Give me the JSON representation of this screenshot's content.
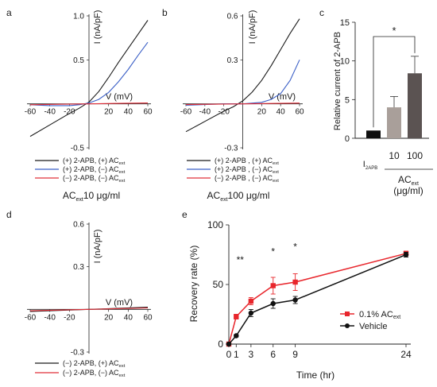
{
  "panels": {
    "a": {
      "letter": "a",
      "ylabel": "I (nA/pF)",
      "xlabel": "V (mV)",
      "condition": "AC",
      "condition_sub": "ext",
      "condition_tail": "10 μg/ml",
      "legend": [
        {
          "pre": "(+) 2-APB, (+) AC",
          "sub": "ext",
          "color": "#1a1a1a"
        },
        {
          "pre": "(+) 2-APB, (−) AC",
          "sub": "ext",
          "color": "#3b5fc6"
        },
        {
          "pre": "(−) 2-APB, (−) AC",
          "sub": "ext",
          "color": "#e0303a"
        }
      ]
    },
    "b": {
      "letter": "b",
      "ylabel": "I (nA/pF)",
      "xlabel": "V (mV)",
      "condition": "AC",
      "condition_sub": "ext",
      "condition_tail": "100 μg/ml",
      "legend": [
        {
          "pre": "(+) 2-APB , (+) AC",
          "sub": "ext",
          "color": "#1a1a1a"
        },
        {
          "pre": "(+) 2-APB , (−) AC",
          "sub": "ext",
          "color": "#3b5fc6"
        },
        {
          "pre": "(−) 2-APB , (−) AC",
          "sub": "ext",
          "color": "#e0303a"
        }
      ]
    },
    "c": {
      "letter": "c",
      "ylabel": "Relative current of 2-APB",
      "xlabel_main": "AC",
      "xlabel_sub": "ext",
      "xlabel_units": "(μg/ml)",
      "cat_main": "I",
      "cat_sub": "2APB",
      "significance": "*"
    },
    "d": {
      "letter": "d",
      "ylabel": "I (nA/pF)",
      "xlabel": "V (mV)",
      "legend": [
        {
          "pre": "(−) 2-APB, (+) AC",
          "sub": "ext",
          "color": "#1a1a1a"
        },
        {
          "pre": "(−) 2-APB, (−) AC",
          "sub": "ext",
          "color": "#e0303a"
        }
      ]
    },
    "e": {
      "letter": "e",
      "ylabel": "Recovery rate (%)",
      "xlabel": "Time (hr)",
      "legend": [
        {
          "pre": "0.1% AC",
          "sub": "ext",
          "color": "#e8262c"
        },
        {
          "pre": "Vehicle",
          "sub": "",
          "color": "#111111"
        }
      ],
      "annotations": [
        {
          "x": 1,
          "y": 68,
          "text": "**"
        },
        {
          "x": 6,
          "y": 75,
          "text": "*"
        },
        {
          "x": 9,
          "y": 79,
          "text": "*"
        }
      ]
    }
  },
  "chart_data": [
    {
      "panel": "a",
      "type": "line",
      "xlabel": "V (mV)",
      "ylabel": "I (nA/pF)",
      "xlim": [
        -60,
        60
      ],
      "ylim": [
        -0.5,
        1.0
      ],
      "xticks": [
        -60,
        -40,
        -20,
        20,
        40,
        60
      ],
      "yticks": [
        -0.5,
        0.5,
        1.0
      ],
      "series": [
        {
          "name": "(+) 2-APB, (+) ACext",
          "color": "#1a1a1a",
          "x": [
            -60,
            -40,
            -20,
            -10,
            0,
            10,
            20,
            30,
            40,
            50,
            60
          ],
          "y": [
            -0.37,
            -0.24,
            -0.11,
            -0.05,
            0.02,
            0.14,
            0.3,
            0.47,
            0.63,
            0.79,
            0.95
          ]
        },
        {
          "name": "(+) 2-APB, (−) ACext",
          "color": "#3b5fc6",
          "x": [
            -60,
            -40,
            -20,
            -10,
            0,
            10,
            20,
            30,
            40,
            50,
            60
          ],
          "y": [
            -0.01,
            -0.02,
            -0.02,
            -0.01,
            0.01,
            0.05,
            0.13,
            0.25,
            0.39,
            0.55,
            0.7
          ]
        },
        {
          "name": "(−) 2-APB, (−) ACext",
          "color": "#e0303a",
          "x": [
            -60,
            -30,
            0,
            30,
            60
          ],
          "y": [
            -0.01,
            -0.005,
            0.0,
            0.005,
            0.01
          ]
        }
      ]
    },
    {
      "panel": "b",
      "type": "line",
      "xlabel": "V (mV)",
      "ylabel": "I (nA/pF)",
      "xlim": [
        -60,
        60
      ],
      "ylim": [
        -0.3,
        0.6
      ],
      "xticks": [
        -60,
        -40,
        -20,
        20,
        40,
        60
      ],
      "yticks": [
        -0.3,
        0.3,
        0.6
      ],
      "series": [
        {
          "name": "(+) 2-APB , (+) ACext",
          "color": "#1a1a1a",
          "x": [
            -60,
            -40,
            -20,
            -10,
            0,
            10,
            20,
            30,
            40,
            50,
            60
          ],
          "y": [
            -0.19,
            -0.12,
            -0.05,
            -0.02,
            0.02,
            0.08,
            0.16,
            0.26,
            0.37,
            0.48,
            0.58
          ]
        },
        {
          "name": "(+) 2-APB , (−) ACext",
          "color": "#3b5fc6",
          "x": [
            -60,
            -20,
            0,
            20,
            30,
            40,
            50,
            60
          ],
          "y": [
            -0.01,
            0.0,
            0.0,
            0.01,
            0.03,
            0.07,
            0.16,
            0.3
          ]
        },
        {
          "name": "(−) 2-APB , (−) ACext",
          "color": "#e0303a",
          "x": [
            -60,
            0,
            60
          ],
          "y": [
            -0.005,
            0.0,
            0.005
          ]
        }
      ]
    },
    {
      "panel": "c",
      "type": "bar",
      "ylabel": "Relative current of 2-APB",
      "ylim": [
        0,
        15
      ],
      "yticks": [
        0,
        5,
        10,
        15
      ],
      "categories": [
        "I2APB",
        "10",
        "100"
      ],
      "values": [
        1,
        4,
        8.4
      ],
      "errors": [
        0,
        1.4,
        2.2
      ],
      "colors": [
        "#0f0f0f",
        "#a99f9a",
        "#5b5352"
      ]
    },
    {
      "panel": "d",
      "type": "line",
      "xlabel": "V (mV)",
      "ylabel": "I (nA/pF)",
      "xlim": [
        -60,
        60
      ],
      "ylim": [
        -0.3,
        0.6
      ],
      "xticks": [
        -60,
        -40,
        -20,
        20,
        40,
        60
      ],
      "yticks": [
        -0.3,
        0.3,
        0.6
      ],
      "series": [
        {
          "name": "(−) 2-APB, (+) ACext",
          "color": "#1a1a1a",
          "x": [
            -60,
            0,
            60
          ],
          "y": [
            -0.015,
            0.0,
            0.015
          ]
        },
        {
          "name": "(−) 2-APB, (−) ACext",
          "color": "#e0303a",
          "x": [
            -60,
            0,
            60
          ],
          "y": [
            -0.01,
            0.0,
            0.01
          ]
        }
      ]
    },
    {
      "panel": "e",
      "type": "line",
      "xlabel": "Time (hr)",
      "ylabel": "Recovery rate (%)",
      "xlim": [
        0,
        24
      ],
      "ylim": [
        0,
        100
      ],
      "xticks": [
        0,
        1,
        3,
        6,
        9,
        24
      ],
      "yticks": [
        0,
        50,
        100
      ],
      "series": [
        {
          "name": "0.1% ACext",
          "color": "#e8262c",
          "marker": "square",
          "x": [
            0,
            1,
            3,
            6,
            9,
            24
          ],
          "y": [
            0,
            23,
            36,
            49,
            52,
            76
          ],
          "errors": [
            0,
            2,
            3,
            7,
            7,
            2
          ]
        },
        {
          "name": "Vehicle",
          "color": "#111111",
          "marker": "circle",
          "x": [
            0,
            1,
            3,
            6,
            9,
            24
          ],
          "y": [
            0,
            7,
            26,
            34,
            37,
            75
          ],
          "errors": [
            0,
            1,
            3,
            4,
            3,
            2
          ]
        }
      ]
    }
  ]
}
